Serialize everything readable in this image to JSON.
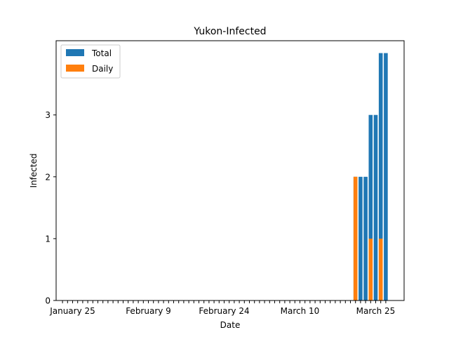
{
  "chart_data": {
    "type": "bar",
    "title": "Yukon-Infected",
    "xlabel": "Date",
    "ylabel": "Infected",
    "ylim": [
      0,
      4.2
    ],
    "yticks": [
      0,
      1,
      2,
      3
    ],
    "x_tick_labels": [
      {
        "index": 2,
        "label": "January 25"
      },
      {
        "index": 17,
        "label": "February 9"
      },
      {
        "index": 32,
        "label": "February 24"
      },
      {
        "index": 47,
        "label": "March 10"
      },
      {
        "index": 62,
        "label": "March 25"
      }
    ],
    "x_dates": {
      "first": "January 23",
      "last": "March 26"
    },
    "legend_position": "top-left",
    "grid": false,
    "series": [
      {
        "name": "Total",
        "color": "#1f77b4",
        "values": [
          0,
          0,
          0,
          0,
          0,
          0,
          0,
          0,
          0,
          0,
          0,
          0,
          0,
          0,
          0,
          0,
          0,
          0,
          0,
          0,
          0,
          0,
          0,
          0,
          0,
          0,
          0,
          0,
          0,
          0,
          0,
          0,
          0,
          0,
          0,
          0,
          0,
          0,
          0,
          0,
          0,
          0,
          0,
          0,
          0,
          0,
          0,
          0,
          0,
          0,
          0,
          0,
          0,
          0,
          0,
          0,
          0,
          0,
          2,
          2,
          2,
          3,
          3,
          4,
          4
        ]
      },
      {
        "name": "Daily",
        "color": "#ff7f0e",
        "values": [
          0,
          0,
          0,
          0,
          0,
          0,
          0,
          0,
          0,
          0,
          0,
          0,
          0,
          0,
          0,
          0,
          0,
          0,
          0,
          0,
          0,
          0,
          0,
          0,
          0,
          0,
          0,
          0,
          0,
          0,
          0,
          0,
          0,
          0,
          0,
          0,
          0,
          0,
          0,
          0,
          0,
          0,
          0,
          0,
          0,
          0,
          0,
          0,
          0,
          0,
          0,
          0,
          0,
          0,
          0,
          0,
          0,
          0,
          2,
          0,
          0,
          1,
          0,
          1,
          0
        ]
      }
    ]
  }
}
